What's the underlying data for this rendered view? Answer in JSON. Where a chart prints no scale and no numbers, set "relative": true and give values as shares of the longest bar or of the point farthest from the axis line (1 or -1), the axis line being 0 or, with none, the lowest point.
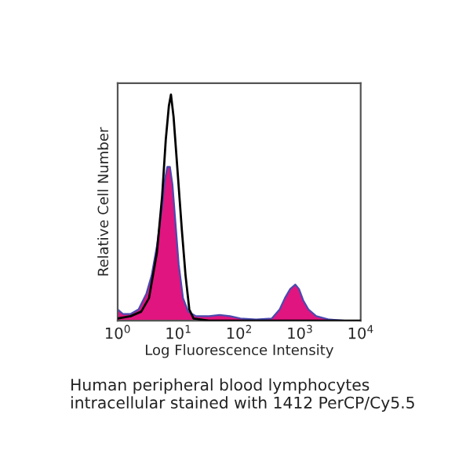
{
  "chart_data": {
    "type": "area",
    "xlabel": "Log Fluorescence Intensity",
    "ylabel": "Relative Cell Number",
    "relative": true,
    "log": "x",
    "xlim": [
      1,
      10000
    ],
    "xticks": [
      {
        "value": 1,
        "label": "10$^{0}$"
      },
      {
        "value": 10,
        "label": "10$^{1}$"
      },
      {
        "value": 100,
        "label": "10$^{2}$"
      },
      {
        "value": 1000,
        "label": "10$^{3}$"
      },
      {
        "value": 10000,
        "label": "10$^{4}$"
      }
    ],
    "tick_labels": "x",
    "grid": false,
    "legend": false,
    "series": [
      {
        "color": "#e0157f",
        "x": [
          1,
          1.22,
          1.64,
          2.21,
          2.97,
          3.62,
          4.42,
          5.39,
          5.95,
          6.56,
          7.25,
          8.0,
          8.84,
          10.1,
          11.9,
          14.5,
          19.5,
          32,
          47.6,
          70.7,
          105,
          190,
          345,
          464,
          566,
          690,
          841,
          966,
          1132,
          1380,
          1857,
          3048,
          5521,
          10000
        ],
        "values": [
          0.05,
          0.03,
          0.03,
          0.05,
          0.12,
          0.2,
          0.33,
          0.5,
          0.62,
          0.68,
          0.68,
          0.6,
          0.45,
          0.25,
          0.1,
          0.04,
          0.02,
          0.02,
          0.025,
          0.02,
          0.01,
          0.005,
          0.01,
          0.05,
          0.1,
          0.14,
          0.16,
          0.14,
          0.09,
          0.05,
          0.02,
          0.005,
          0,
          0
        ]
      },
      {
        "type": "line",
        "color": "#000000",
        "x": [
          1,
          1.64,
          2.44,
          3.28,
          4.42,
          5.39,
          6.19,
          6.97,
          7.54,
          8.33,
          9.75,
          11.4,
          13.1,
          15.1,
          17.7,
          32,
          10000
        ],
        "values": [
          0.01,
          0.02,
          0.04,
          0.1,
          0.3,
          0.55,
          0.8,
          0.95,
          1.0,
          0.9,
          0.65,
          0.4,
          0.2,
          0.05,
          0.01,
          0,
          0
        ]
      }
    ],
    "annotations": [
      "Human peripheral blood lymphocytes intracellular stained with 1412 PerCP/Cy5.5"
    ]
  }
}
